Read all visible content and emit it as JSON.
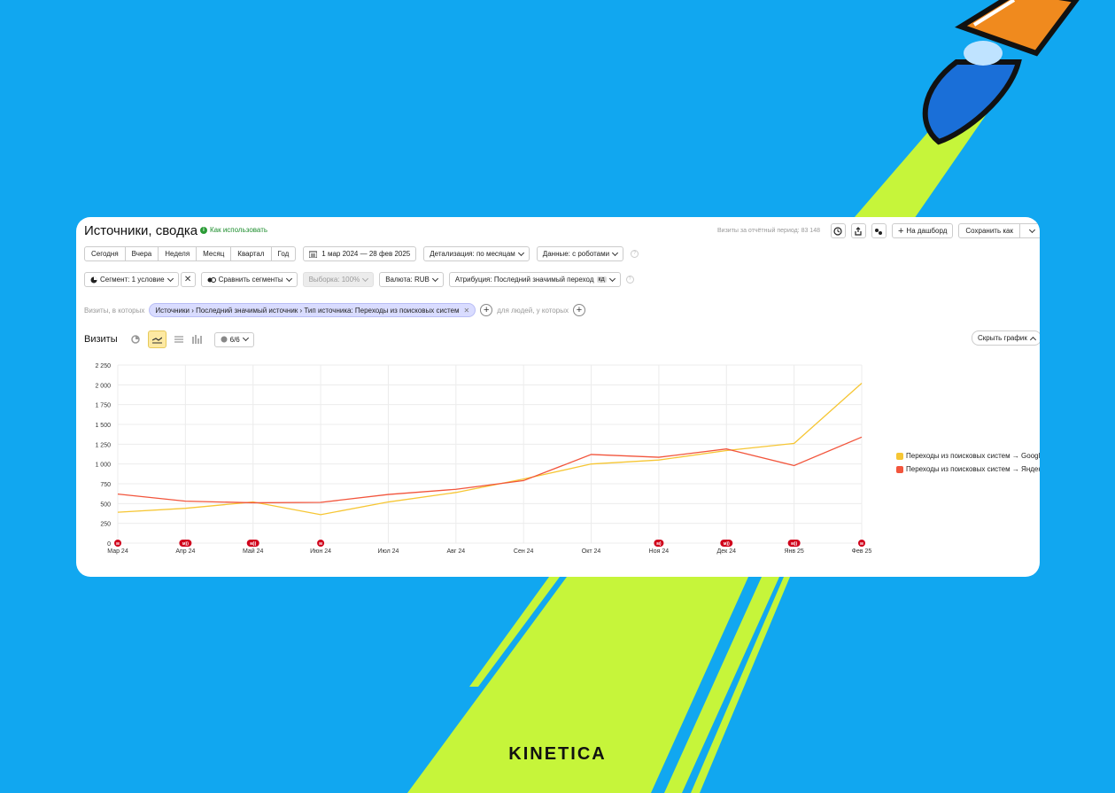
{
  "brand": "KINETICA",
  "report": {
    "title": "Источники, сводка",
    "howto_label": "Как использовать",
    "visits_total_label": "Визиты за отчётный период: 83 148",
    "dashboard_label": "На дашборд",
    "save_label": "Сохранить как"
  },
  "periods": [
    "Сегодня",
    "Вчера",
    "Неделя",
    "Месяц",
    "Квартал",
    "Год"
  ],
  "toolbar": {
    "date_range": "1 мар 2024 — 28 фев 2025",
    "detail": "Детализация: по месяцам",
    "data": "Данные: с роботами",
    "segment": "Сегмент: 1 условие",
    "compare": "Сравнить сегменты",
    "sample": "Выборка: 100%",
    "currency": "Валюта: RUB",
    "attribution": "Атрибуция: Последний значимый переход",
    "attribution_badge": "кд"
  },
  "filter": {
    "prefix": "Визиты, в которых",
    "chip": "Источники › Последний значимый источник › Тип источника: Переходы из поисковых систем",
    "people": "для людей, у которых"
  },
  "chart_header": {
    "metric": "Визиты",
    "series_count": "6/6",
    "hide_label": "Скрыть график"
  },
  "colors": {
    "google": "#f6c634",
    "yandex": "#f2553c",
    "marker": "#d0021b",
    "accent_bg": "#11a7f0",
    "stripe": "#c6f53a"
  },
  "chart_data": {
    "type": "line",
    "categories": [
      "Мар 24",
      "Апр 24",
      "Май 24",
      "Июн 24",
      "Июл 24",
      "Авг 24",
      "Сен 24",
      "Окт 24",
      "Ноя 24",
      "Дек 24",
      "Янв 25",
      "Фев 25"
    ],
    "yticks": [
      "0",
      "250",
      "500",
      "750",
      "1 000",
      "1 250",
      "1 500",
      "1 750",
      "2 000",
      "2 250"
    ],
    "ylim": [
      0,
      2250
    ],
    "grid": true,
    "legend_position": "right",
    "series": [
      {
        "name": "Переходы из поисковых систем → Google",
        "color": "#f6c634",
        "values": [
          390,
          440,
          520,
          360,
          520,
          640,
          810,
          1000,
          1050,
          1170,
          1260,
          2020
        ]
      },
      {
        "name": "Переходы из поисковых систем → Яндекс",
        "color": "#f2553c",
        "values": [
          620,
          530,
          510,
          515,
          615,
          680,
          790,
          1120,
          1085,
          1190,
          980,
          1340
        ]
      }
    ],
    "markers": [
      "м",
      "м))",
      "м))",
      "м",
      "",
      "",
      "",
      "",
      "м)",
      "м))",
      "м))",
      "м"
    ]
  }
}
